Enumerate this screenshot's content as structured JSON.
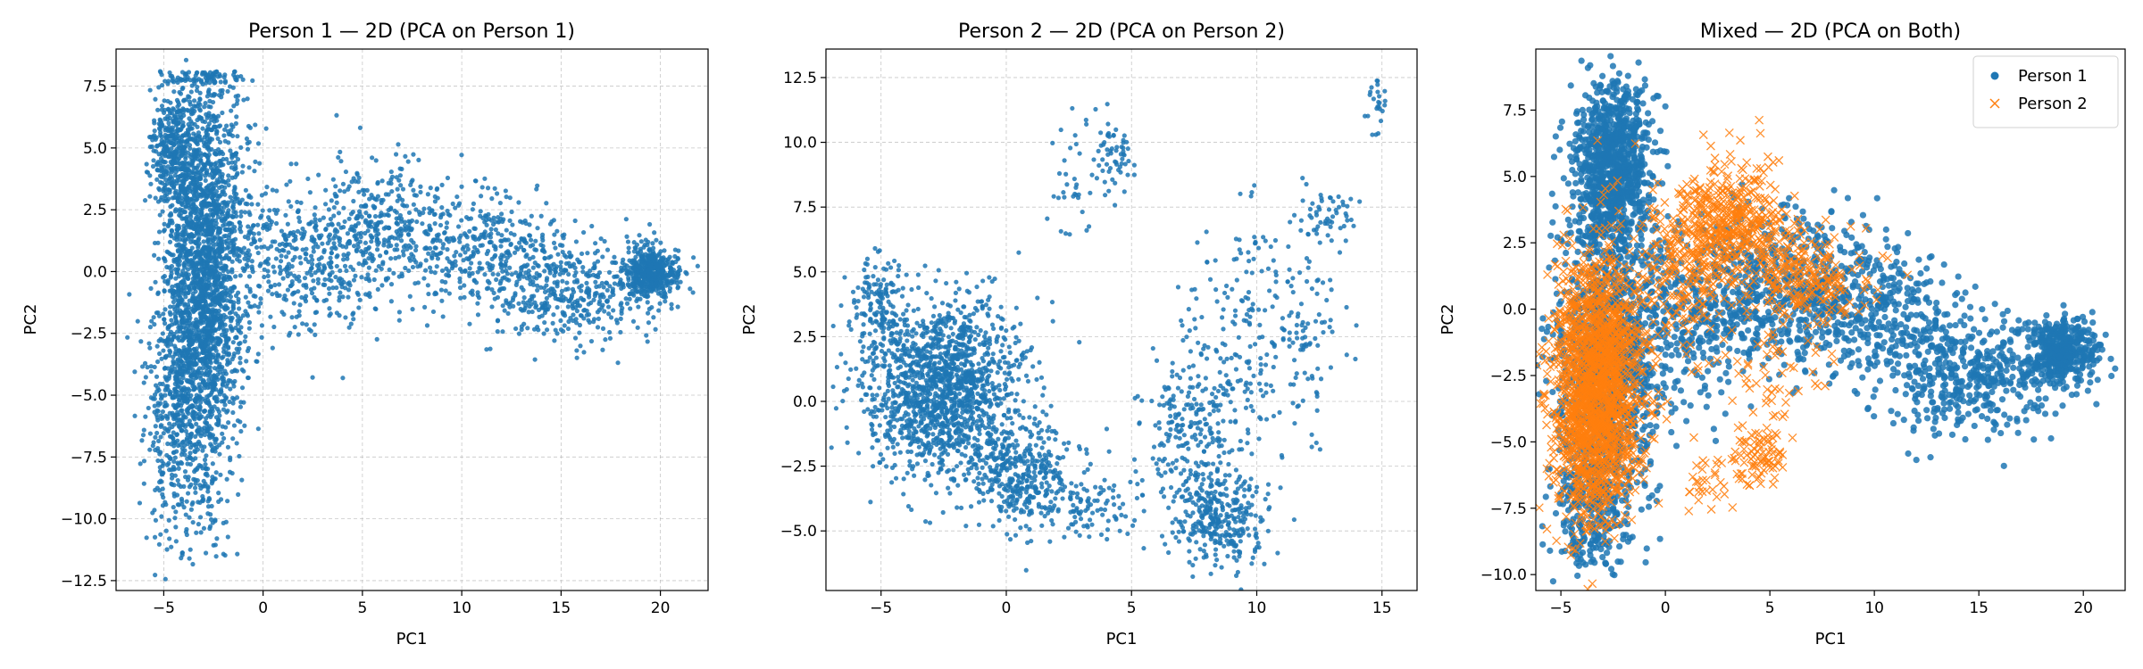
{
  "chart_data": [
    {
      "type": "scatter",
      "title": "Person 1 — 2D (PCA on Person 1)",
      "xlabel": "PC1",
      "ylabel": "PC2",
      "xlim": [
        -7.4,
        22.4
      ],
      "ylim": [
        -12.9,
        9.0
      ],
      "xticks": [
        -5,
        0,
        5,
        10,
        15,
        20
      ],
      "yticks": [
        -12.5,
        -10.0,
        -7.5,
        -5.0,
        -2.5,
        0.0,
        2.5,
        5.0,
        7.5
      ],
      "grid": true,
      "legend": null,
      "series": [
        {
          "color": "#1f77b4",
          "marker": "circle",
          "clusters": [
            {
              "cx": -3.0,
              "cy": 0.0,
              "sx": 1.0,
              "sy": 4.2,
              "n": 2400,
              "ymin": -11.6,
              "ymax": 8.1
            },
            {
              "cx": -4.5,
              "cy": 4.8,
              "sx": 0.6,
              "sy": 1.2,
              "n": 350
            },
            {
              "cx": -4.2,
              "cy": -5.5,
              "sx": 0.9,
              "sy": 2.6,
              "n": 450
            },
            {
              "cx": 2.0,
              "cy": 0.5,
              "sx": 2.2,
              "sy": 1.6,
              "n": 450
            },
            {
              "cx": 6.0,
              "cy": 1.8,
              "sx": 1.6,
              "sy": 1.3,
              "n": 300
            },
            {
              "cx": 11.0,
              "cy": 1.0,
              "sx": 2.0,
              "sy": 1.2,
              "n": 350
            },
            {
              "cx": 15.5,
              "cy": -0.8,
              "sx": 2.0,
              "sy": 1.1,
              "n": 400
            },
            {
              "cx": 19.5,
              "cy": 0.0,
              "sx": 0.7,
              "sy": 0.5,
              "n": 500
            }
          ]
        }
      ]
    },
    {
      "type": "scatter",
      "title": "Person 2 — 2D (PCA on Person 2)",
      "xlabel": "PC1",
      "ylabel": "PC2",
      "xlim": [
        -7.2,
        16.4
      ],
      "ylim": [
        -7.3,
        13.6
      ],
      "xticks": [
        -5,
        0,
        5,
        10,
        15
      ],
      "yticks": [
        -5.0,
        -2.5,
        0.0,
        2.5,
        5.0,
        7.5,
        10.0,
        12.5
      ],
      "grid": true,
      "legend": null,
      "series": [
        {
          "color": "#1f77b4",
          "marker": "circle",
          "clusters": [
            {
              "cx": -2.5,
              "cy": 0.5,
              "sx": 1.6,
              "sy": 1.6,
              "n": 1500,
              "rot": -0.55
            },
            {
              "cx": 0.5,
              "cy": -2.8,
              "sx": 1.0,
              "sy": 0.9,
              "n": 350
            },
            {
              "cx": -5.0,
              "cy": 3.8,
              "sx": 0.5,
              "sy": 1.0,
              "n": 150
            },
            {
              "cx": 3.0,
              "cy": -4.0,
              "sx": 1.2,
              "sy": 0.8,
              "n": 120
            },
            {
              "cx": 7.5,
              "cy": -1.5,
              "sx": 1.0,
              "sy": 1.8,
              "n": 250
            },
            {
              "cx": 8.5,
              "cy": -4.5,
              "sx": 0.9,
              "sy": 0.9,
              "n": 300
            },
            {
              "cx": 9.0,
              "cy": 2.5,
              "sx": 1.2,
              "sy": 2.2,
              "n": 150
            },
            {
              "cx": 11.5,
              "cy": 3.0,
              "sx": 1.0,
              "sy": 2.0,
              "n": 120
            },
            {
              "cx": 13.0,
              "cy": 7.2,
              "sx": 0.6,
              "sy": 0.5,
              "n": 50
            },
            {
              "cx": 4.3,
              "cy": 9.5,
              "sx": 0.4,
              "sy": 0.7,
              "n": 60
            },
            {
              "cx": 2.5,
              "cy": 7.8,
              "sx": 0.4,
              "sy": 0.8,
              "n": 25
            },
            {
              "cx": 14.7,
              "cy": 11.5,
              "sx": 0.3,
              "sy": 0.6,
              "n": 25
            },
            {
              "cx": 3.0,
              "cy": 10.5,
              "sx": 0.5,
              "sy": 0.6,
              "n": 10
            }
          ]
        }
      ]
    },
    {
      "type": "scatter",
      "title": "Mixed — 2D (PCA on Both)",
      "xlabel": "PC1",
      "ylabel": "PC2",
      "xlim": [
        -6.2,
        22.0
      ],
      "ylim": [
        -10.6,
        9.8
      ],
      "xticks": [
        -5,
        0,
        5,
        10,
        15,
        20
      ],
      "yticks": [
        -10.0,
        -7.5,
        -5.0,
        -2.5,
        0.0,
        2.5,
        5.0,
        7.5
      ],
      "grid": false,
      "legend": "top-right",
      "series": [
        {
          "name": "Person 1",
          "color": "#1f77b4",
          "marker": "circle",
          "clusters": [
            {
              "cx": -2.5,
              "cy": 5.5,
              "sx": 0.9,
              "sy": 1.5,
              "n": 900
            },
            {
              "cx": -2.8,
              "cy": -2.0,
              "sx": 1.2,
              "sy": 3.0,
              "n": 1200,
              "ymin": -9.9
            },
            {
              "cx": 1.5,
              "cy": 0.0,
              "sx": 2.0,
              "sy": 1.5,
              "n": 400
            },
            {
              "cx": 6.0,
              "cy": 0.8,
              "sx": 2.0,
              "sy": 1.5,
              "n": 400
            },
            {
              "cx": 10.0,
              "cy": 0.0,
              "sx": 2.0,
              "sy": 1.3,
              "n": 350
            },
            {
              "cx": 14.5,
              "cy": -2.5,
              "sx": 2.0,
              "sy": 1.1,
              "n": 400
            },
            {
              "cx": 19.0,
              "cy": -1.6,
              "sx": 0.8,
              "sy": 0.6,
              "n": 450
            },
            {
              "cx": -3.5,
              "cy": -7.5,
              "sx": 0.8,
              "sy": 1.2,
              "n": 200
            }
          ]
        },
        {
          "name": "Person 2",
          "color": "#ff7f0e",
          "marker": "x",
          "clusters": [
            {
              "cx": -3.2,
              "cy": -2.5,
              "sx": 1.1,
              "sy": 2.3,
              "n": 1600
            },
            {
              "cx": -3.5,
              "cy": -5.5,
              "sx": 0.9,
              "sy": 1.3,
              "n": 250
            },
            {
              "cx": 3.0,
              "cy": 3.5,
              "sx": 1.3,
              "sy": 1.1,
              "n": 400
            },
            {
              "cx": 6.5,
              "cy": 1.2,
              "sx": 1.5,
              "sy": 1.0,
              "n": 250
            },
            {
              "cx": 1.0,
              "cy": 1.5,
              "sx": 1.2,
              "sy": 1.4,
              "n": 200
            },
            {
              "cx": 4.5,
              "cy": -5.5,
              "sx": 0.6,
              "sy": 0.5,
              "n": 80
            },
            {
              "cx": 2.0,
              "cy": -6.5,
              "sx": 0.6,
              "sy": 0.7,
              "n": 30
            },
            {
              "cx": 5.0,
              "cy": -2.5,
              "sx": 1.5,
              "sy": 1.0,
              "n": 50
            }
          ]
        }
      ]
    }
  ]
}
